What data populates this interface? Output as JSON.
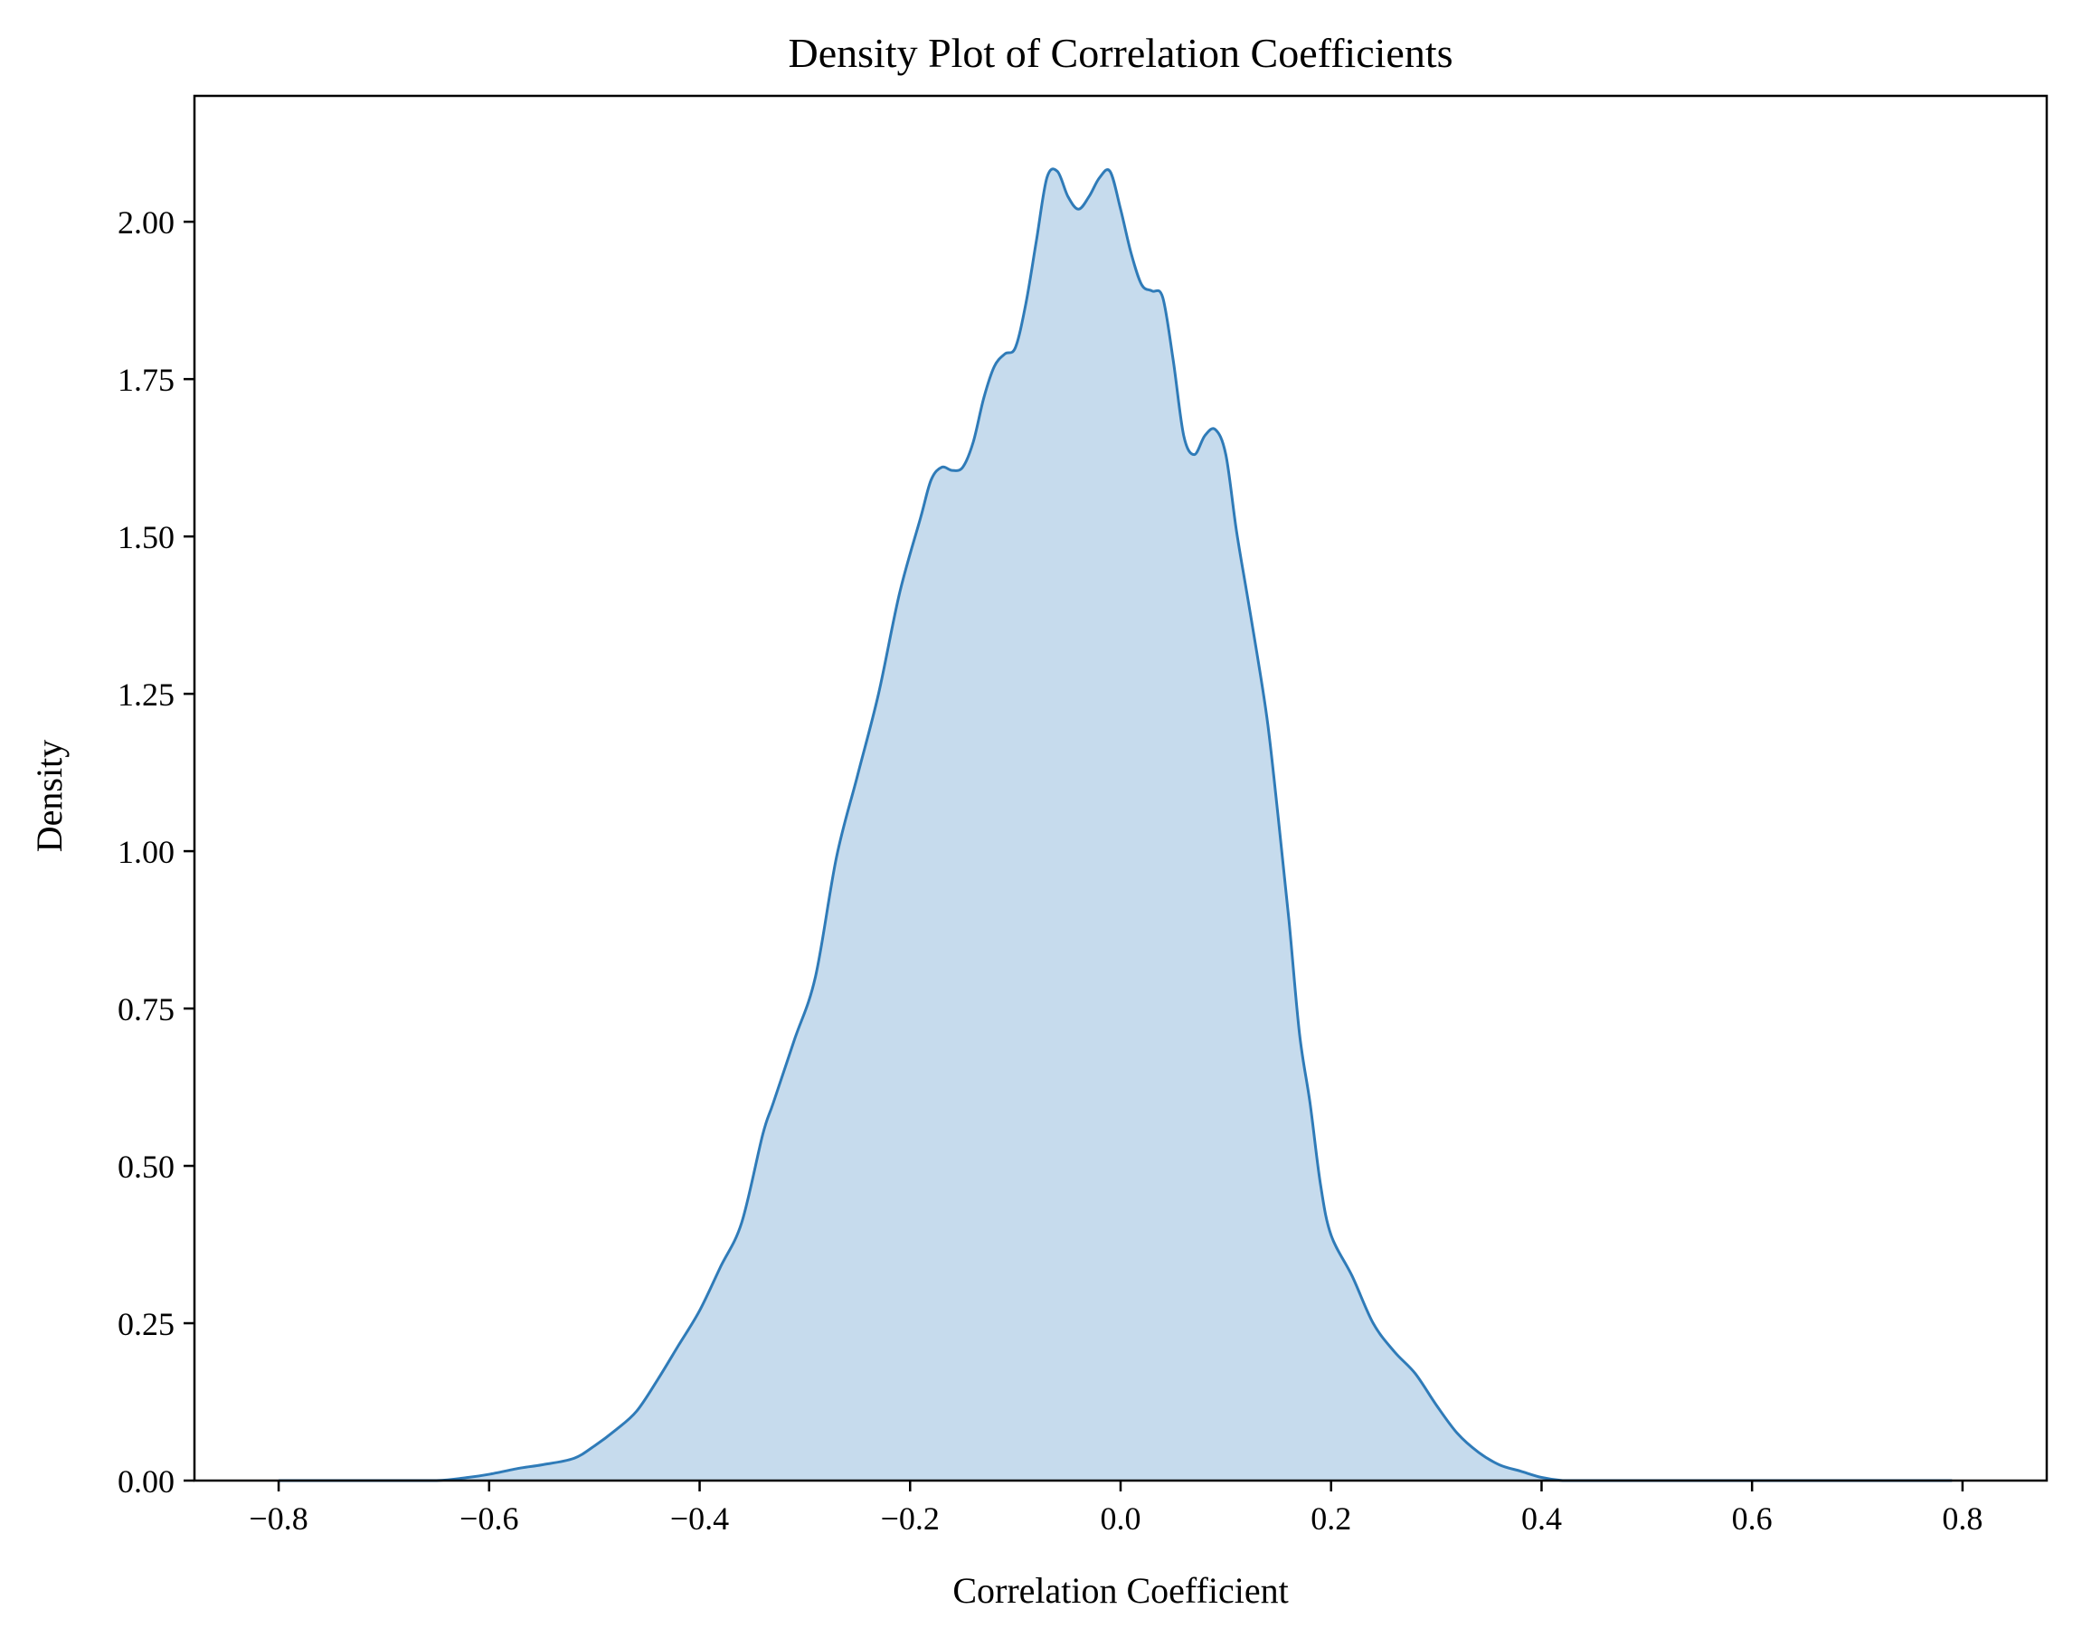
{
  "chart_data": {
    "type": "area",
    "title": "Density Plot of Correlation Coefficients",
    "xlabel": "Correlation Coefficient",
    "ylabel": "Density",
    "xlim": [
      -0.88,
      0.88
    ],
    "ylim": [
      0,
      2.2
    ],
    "x_ticks": [
      -0.8,
      -0.6,
      -0.4,
      -0.2,
      0.0,
      0.2,
      0.4,
      0.6,
      0.8
    ],
    "x_tick_labels": [
      "−0.8",
      "−0.6",
      "−0.4",
      "−0.2",
      "0.0",
      "0.2",
      "0.4",
      "0.6",
      "0.8"
    ],
    "y_ticks": [
      0.0,
      0.25,
      0.5,
      0.75,
      1.0,
      1.25,
      1.5,
      1.75,
      2.0
    ],
    "y_tick_labels": [
      "0.00",
      "0.25",
      "0.50",
      "0.75",
      "1.00",
      "1.25",
      "1.50",
      "1.75",
      "2.00"
    ],
    "grid": false,
    "legend": "none",
    "line_color": "#2f7bb8",
    "fill_color": "#c6dbed",
    "series": [
      {
        "x": [
          -0.8,
          -0.7,
          -0.65,
          -0.62,
          -0.6,
          -0.57,
          -0.55,
          -0.52,
          -0.5,
          -0.48,
          -0.46,
          -0.44,
          -0.42,
          -0.4,
          -0.38,
          -0.36,
          -0.34,
          -0.33,
          -0.31,
          -0.29,
          -0.27,
          -0.25,
          -0.23,
          -0.21,
          -0.19,
          -0.18,
          -0.17,
          -0.16,
          -0.15,
          -0.14,
          -0.13,
          -0.12,
          -0.11,
          -0.1,
          -0.09,
          -0.08,
          -0.07,
          -0.06,
          -0.05,
          -0.04,
          -0.03,
          -0.02,
          -0.01,
          0.0,
          0.01,
          0.02,
          0.03,
          0.04,
          0.05,
          0.06,
          0.07,
          0.08,
          0.09,
          0.1,
          0.11,
          0.12,
          0.13,
          0.14,
          0.15,
          0.16,
          0.17,
          0.18,
          0.19,
          0.2,
          0.22,
          0.24,
          0.26,
          0.28,
          0.3,
          0.32,
          0.34,
          0.36,
          0.38,
          0.4,
          0.42,
          0.44,
          0.46,
          0.48,
          0.5,
          0.53,
          0.56,
          0.6,
          0.65,
          0.7,
          0.79
        ],
        "y": [
          0.0,
          0.0,
          0.0,
          0.005,
          0.01,
          0.02,
          0.025,
          0.035,
          0.055,
          0.08,
          0.11,
          0.16,
          0.215,
          0.27,
          0.34,
          0.41,
          0.55,
          0.6,
          0.7,
          0.8,
          0.99,
          1.12,
          1.25,
          1.41,
          1.53,
          1.59,
          1.61,
          1.605,
          1.61,
          1.65,
          1.72,
          1.77,
          1.79,
          1.8,
          1.87,
          1.97,
          2.07,
          2.08,
          2.04,
          2.02,
          2.04,
          2.07,
          2.08,
          2.02,
          1.95,
          1.9,
          1.89,
          1.88,
          1.78,
          1.66,
          1.63,
          1.66,
          1.67,
          1.63,
          1.51,
          1.41,
          1.31,
          1.2,
          1.05,
          0.89,
          0.71,
          0.6,
          0.47,
          0.39,
          0.325,
          0.25,
          0.205,
          0.17,
          0.12,
          0.075,
          0.045,
          0.025,
          0.015,
          0.005,
          0.0,
          0.0,
          0.0,
          0.0,
          0.0,
          0.0,
          0.0,
          0.0,
          0.0,
          0.0,
          0.0
        ]
      }
    ]
  }
}
